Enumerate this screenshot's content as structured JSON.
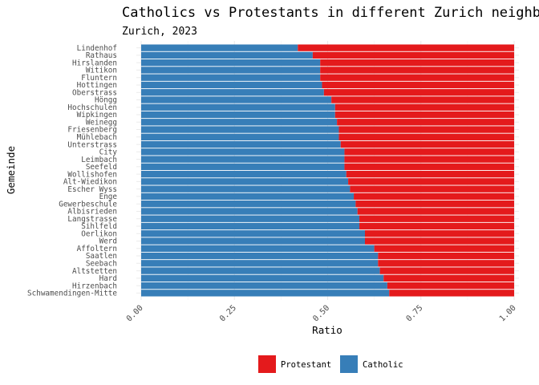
{
  "chart_data": {
    "type": "bar",
    "orientation": "horizontal",
    "stacked": true,
    "title": "Catholics vs Protestants in different Zurich neighborhoods",
    "subtitle": "Zurich, 2023",
    "xlabel": "Ratio",
    "ylabel": "Gemeinde",
    "xlim": [
      0,
      1
    ],
    "xticks": [
      "0.00",
      "0.25",
      "0.50",
      "0.75",
      "1.00"
    ],
    "grid": true,
    "legend_position": "bottom",
    "categories": [
      "Lindenhof",
      "Rathaus",
      "Hirslanden",
      "Witikon",
      "Fluntern",
      "Hottingen",
      "Oberstrass",
      "Höngg",
      "Hochschulen",
      "Wipkingen",
      "Weinegg",
      "Friesenberg",
      "Mühlebach",
      "Unterstrass",
      "City",
      "Leimbach",
      "Seefeld",
      "Wollishofen",
      "Alt-Wiedikon",
      "Escher Wyss",
      "Enge",
      "Gewerbeschule",
      "Albisrieden",
      "Langstrasse",
      "Sihlfeld",
      "Oerlikon",
      "Werd",
      "Affoltern",
      "Saatlen",
      "Seebach",
      "Altstetten",
      "Hard",
      "Hirzenbach",
      "Schwamendingen-Mitte"
    ],
    "series": [
      {
        "name": "Catholic",
        "color": "#377eb8",
        "values": [
          0.42,
          0.46,
          0.48,
          0.48,
          0.48,
          0.485,
          0.49,
          0.51,
          0.52,
          0.52,
          0.525,
          0.53,
          0.53,
          0.535,
          0.545,
          0.545,
          0.545,
          0.55,
          0.555,
          0.56,
          0.57,
          0.575,
          0.58,
          0.585,
          0.585,
          0.6,
          0.6,
          0.625,
          0.635,
          0.635,
          0.64,
          0.65,
          0.66,
          0.665
        ]
      },
      {
        "name": "Protestant",
        "color": "#e41a1c",
        "values": [
          0.58,
          0.54,
          0.52,
          0.52,
          0.52,
          0.515,
          0.51,
          0.49,
          0.48,
          0.48,
          0.475,
          0.47,
          0.47,
          0.465,
          0.455,
          0.455,
          0.455,
          0.45,
          0.445,
          0.44,
          0.43,
          0.425,
          0.42,
          0.415,
          0.415,
          0.4,
          0.4,
          0.375,
          0.365,
          0.365,
          0.36,
          0.35,
          0.34,
          0.335
        ]
      }
    ],
    "legend": [
      {
        "label": "Protestant",
        "color": "#e41a1c"
      },
      {
        "label": "Catholic",
        "color": "#377eb8"
      }
    ]
  }
}
